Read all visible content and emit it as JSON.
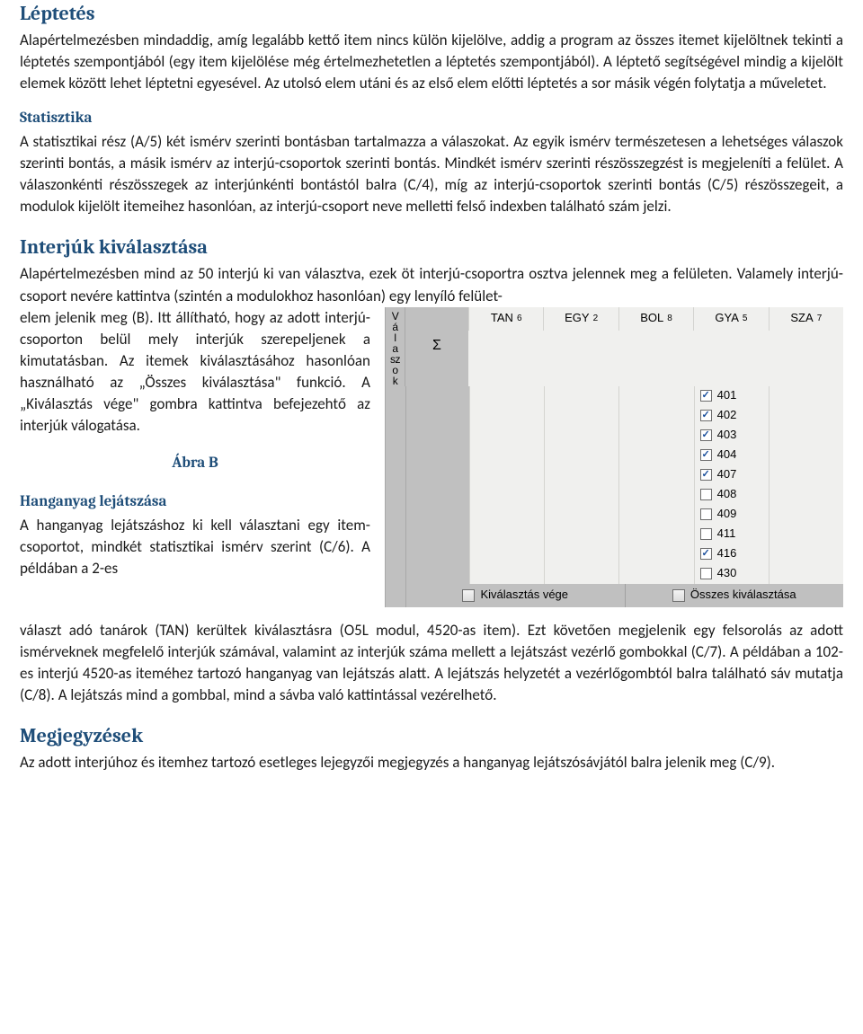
{
  "colors": {
    "heading": "#1f4e79",
    "body_text": "#1a1a1a",
    "figure_bg": "#c0c0c0",
    "figure_list_bg": "#f0f0ee",
    "figure_border": "#a8a8a8",
    "checkbox_check": "#1a4f9c"
  },
  "typography": {
    "body_family": "Calibri",
    "heading_family": "Cambria",
    "figure_family": "Tahoma",
    "body_size_pt": 12,
    "heading_size_pt": 16
  },
  "sections": {
    "leptetes": {
      "heading": "Léptetés",
      "body": "Alapértelmezésben mindaddig, amíg legalább kettő item nincs külön kijelölve, addig a program az összes itemet kijelöltnek tekinti a léptetés szempontjából (egy item kijelölése még értelmezhetetlen a léptetés szempontjából). A léptető segítségével mindig a kijelölt elemek között lehet léptetni egyesével. Az utolsó elem utáni és az első elem előtti léptetés a sor másik végén folytatja a műveletet."
    },
    "statisztika": {
      "heading": "Statisztika",
      "body": "A statisztikai rész (A/5) két ismérv szerinti bontásban tartalmazza a válaszokat. Az egyik ismérv természetesen a lehetséges válaszok szerinti bontás, a másik ismérv az interjú-csoportok szerinti bontás. Mindkét ismérv szerinti részösszegzést is megjeleníti a felület. A válaszonkénti részösszegek az interjúnkénti bontástól balra (C/4), míg az interjú-csoportok szerinti bontás (C/5) részösszegeit, a modulok kijelölt itemeihez hasonlóan, az interjú-csoport neve melletti felső indexben található szám jelzi."
    },
    "interjuk": {
      "heading": "Interjúk kiválasztása",
      "intro": "Alapértelmezésben mind az 50 interjú ki van választva, ezek öt interjú-csoportra osztva jelennek meg a felületen. Valamely interjú-csoport nevére kattintva (szintén a modulokhoz hasonlóan) egy lenyíló felület-",
      "left_body": "elem jelenik meg (B). Itt állítható, hogy az adott interjú-csoporton belül mely interjúk szerepeljenek a kimutatásban. Az itemek kiválasztásához hasonlóan használható az „Összes kiválasztása\" funkció. A „Kiválasztás vége\" gombra kattintva befejezehtő az interjúk válogatása.",
      "abra_label": "Ábra B"
    },
    "hanganyag": {
      "heading": "Hanganyag lejátszása",
      "left_body": "A hanganyag lejátszáshoz ki kell választani egy item-csoportot, mindkét statisztikai ismérv szerint (C/6). A példában a 2-es",
      "cont": "választ adó tanárok (TAN) kerültek kiválasztásra (O5L modul, 4520-as item). Ezt követően megjelenik egy felsorolás az adott ismérveknek megfelelő interjúk számával, valamint az interjúk száma mellett a lejátszást vezérlő gombokkal (C/7). A példában a 102-es interjú 4520-as iteméhez tartozó hanganyag  van lejátszás alatt. A lejátszás helyzetét a vezérlőgombtól balra található sáv mutatja (C/8).  A lejátszás mind a gombbal, mind a sávba való kattintással vezérelhető."
    },
    "megjegyzesek": {
      "heading": "Megjegyzések",
      "body": "Az adott interjúhoz és itemhez tartozó esetleges lejegyzői megjegyzés a hanganyag lejátszósávjától balra jelenik meg (C/9)."
    }
  },
  "figure": {
    "vertical_label_chars": [
      "V",
      "á",
      "l",
      "a",
      "sz",
      "o",
      "k"
    ],
    "sigma": "Σ",
    "groups": [
      {
        "name": "TAN",
        "sup": "6"
      },
      {
        "name": "EGY",
        "sup": "2"
      },
      {
        "name": "BOL",
        "sup": "8"
      },
      {
        "name": "GYA",
        "sup": "5"
      },
      {
        "name": "SZA",
        "sup": "7"
      }
    ],
    "active_group_index": 3,
    "rows": [
      {
        "id": "401",
        "checked": true
      },
      {
        "id": "402",
        "checked": true
      },
      {
        "id": "403",
        "checked": true
      },
      {
        "id": "404",
        "checked": true
      },
      {
        "id": "407",
        "checked": true
      },
      {
        "id": "408",
        "checked": false
      },
      {
        "id": "409",
        "checked": false
      },
      {
        "id": "411",
        "checked": false
      },
      {
        "id": "416",
        "checked": true
      },
      {
        "id": "430",
        "checked": false
      }
    ],
    "btn_finish": "Kiválasztás vége",
    "btn_all": "Összes kiválasztása"
  }
}
